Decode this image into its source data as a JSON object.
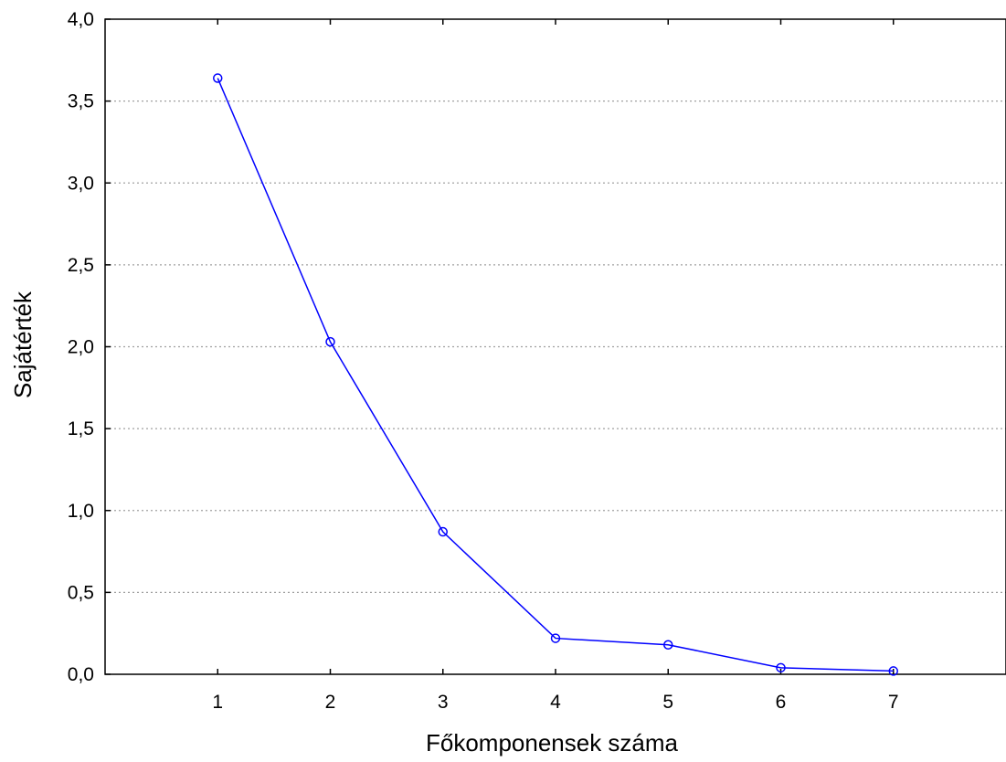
{
  "chart_data": {
    "type": "line",
    "title": "",
    "xlabel": "Főkomponensek száma",
    "ylabel": "Sajátérték",
    "x": [
      1,
      2,
      3,
      4,
      5,
      6,
      7
    ],
    "series": [
      {
        "values": [
          3.64,
          2.03,
          0.87,
          0.22,
          0.18,
          0.04,
          0.02
        ]
      }
    ],
    "xlim": [
      0,
      8
    ],
    "ylim": [
      0,
      4
    ],
    "x_ticks": [
      "1",
      "2",
      "3",
      "4",
      "5",
      "6",
      "7"
    ],
    "y_ticks": [
      "0,0",
      "0,5",
      "1,0",
      "1,5",
      "2,0",
      "2,5",
      "3,0",
      "3,5",
      "4,0"
    ],
    "grid": "horizontal dotted",
    "line_color": "#0000ff",
    "grid_color": "#a0a0a0",
    "marker": "circle"
  }
}
